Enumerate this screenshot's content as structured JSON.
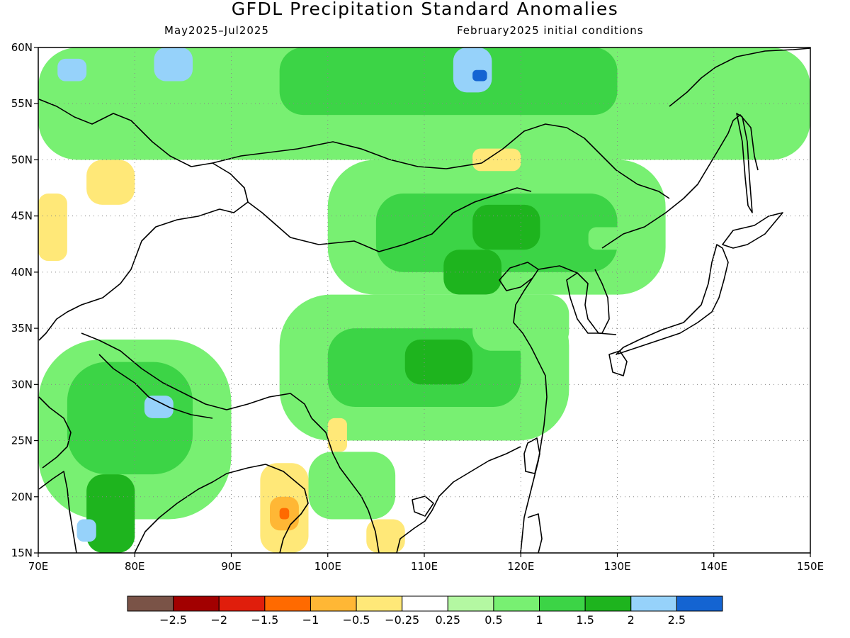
{
  "title": "GFDL Precipitation Standard Anomalies",
  "subtitle_left": "May2025–Jul2025",
  "subtitle_right": "February2025 initial conditions",
  "map": {
    "lon_range": [
      70,
      150
    ],
    "lat_range": [
      15,
      60
    ],
    "lon_labels": [
      "70E",
      "80E",
      "90E",
      "100E",
      "110E",
      "120E",
      "130E",
      "140E",
      "150E"
    ],
    "lat_labels": [
      "60N",
      "55N",
      "50N",
      "45N",
      "40N",
      "35N",
      "30N",
      "25N",
      "20N",
      "15N"
    ],
    "grid": "dotted",
    "land_color": "#ffffff",
    "coast_color": "#000000"
  },
  "colorbar": {
    "colors": [
      "#7a5347",
      "#a20000",
      "#e01e0c",
      "#ff6a00",
      "#ffb735",
      "#ffe878",
      "#ffffff",
      "#b4f8a2",
      "#78f072",
      "#3cd446",
      "#1eb41e",
      "#96d2fa",
      "#1464d2"
    ],
    "labels": [
      "−2.5",
      "−2",
      "−1.5",
      "−1",
      "−0.5",
      "−0.25",
      "0.25",
      "0.5",
      "1",
      "1.5",
      "2",
      "2.5"
    ]
  },
  "anomaly_regions": [
    {
      "level": 8,
      "lon": [
        70,
        150
      ],
      "lat": [
        50,
        60
      ]
    },
    {
      "level": 9,
      "lon": [
        95,
        130
      ],
      "lat": [
        54,
        60
      ]
    },
    {
      "level": 11,
      "lon": [
        82,
        86
      ],
      "lat": [
        57,
        60
      ]
    },
    {
      "level": 11,
      "lon": [
        113,
        117
      ],
      "lat": [
        56,
        60
      ]
    },
    {
      "level": 12,
      "lon": [
        115,
        116.5
      ],
      "lat": [
        57,
        58
      ]
    },
    {
      "level": 11,
      "lon": [
        72,
        75
      ],
      "lat": [
        57,
        59
      ]
    },
    {
      "level": 8,
      "lon": [
        100,
        135
      ],
      "lat": [
        38,
        50
      ]
    },
    {
      "level": 9,
      "lon": [
        105,
        130
      ],
      "lat": [
        40,
        47
      ]
    },
    {
      "level": 10,
      "lon": [
        115,
        122
      ],
      "lat": [
        42,
        46
      ]
    },
    {
      "level": 10,
      "lon": [
        112,
        118
      ],
      "lat": [
        38,
        42
      ]
    },
    {
      "level": 5,
      "lon": [
        70,
        73
      ],
      "lat": [
        41,
        47
      ]
    },
    {
      "level": 5,
      "lon": [
        75,
        80
      ],
      "lat": [
        46,
        50
      ]
    },
    {
      "level": 5,
      "lon": [
        115,
        120
      ],
      "lat": [
        49,
        51
      ]
    },
    {
      "level": 8,
      "lon": [
        95,
        125
      ],
      "lat": [
        25,
        38
      ]
    },
    {
      "level": 9,
      "lon": [
        100,
        120
      ],
      "lat": [
        28,
        35
      ]
    },
    {
      "level": 10,
      "lon": [
        108,
        115
      ],
      "lat": [
        30,
        34
      ]
    },
    {
      "level": 8,
      "lon": [
        70,
        90
      ],
      "lat": [
        18,
        34
      ]
    },
    {
      "level": 9,
      "lon": [
        73,
        86
      ],
      "lat": [
        22,
        32
      ]
    },
    {
      "level": 10,
      "lon": [
        75,
        80
      ],
      "lat": [
        15,
        22
      ]
    },
    {
      "level": 11,
      "lon": [
        74,
        76
      ],
      "lat": [
        16,
        18
      ]
    },
    {
      "level": 11,
      "lon": [
        81,
        84
      ],
      "lat": [
        27,
        29
      ]
    },
    {
      "level": 5,
      "lon": [
        93,
        98
      ],
      "lat": [
        15,
        23
      ]
    },
    {
      "level": 4,
      "lon": [
        94,
        97
      ],
      "lat": [
        17,
        20
      ]
    },
    {
      "level": 3,
      "lon": [
        95,
        96
      ],
      "lat": [
        18,
        19
      ]
    },
    {
      "level": 5,
      "lon": [
        104,
        108
      ],
      "lat": [
        15,
        18
      ]
    },
    {
      "level": 5,
      "lon": [
        100,
        102
      ],
      "lat": [
        24,
        27
      ]
    },
    {
      "level": 8,
      "lon": [
        98,
        107
      ],
      "lat": [
        18,
        24
      ]
    },
    {
      "level": 8,
      "lon": [
        115,
        125
      ],
      "lat": [
        33,
        38
      ]
    },
    {
      "level": 8,
      "lon": [
        127,
        131
      ],
      "lat": [
        42,
        44
      ]
    }
  ]
}
